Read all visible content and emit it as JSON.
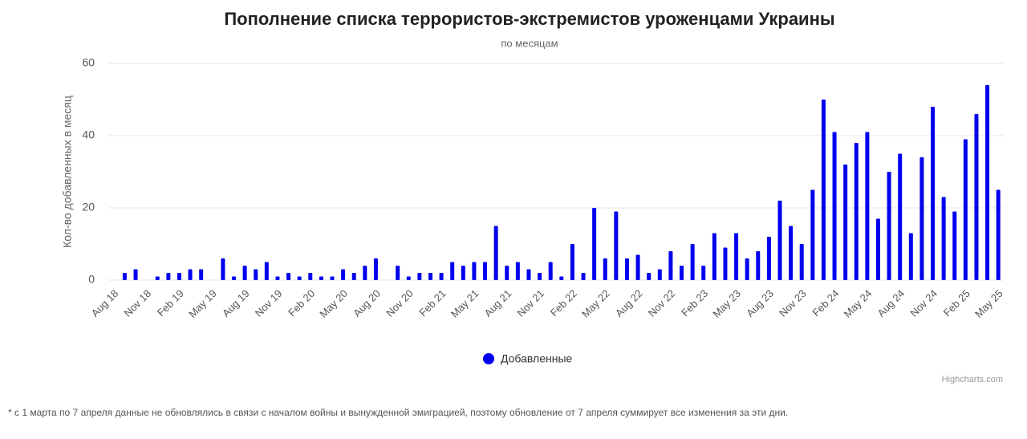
{
  "chart_data": {
    "type": "bar",
    "title": "Пополнение списка террористов-экстремистов уроженцами Украины",
    "subtitle": "по месяцам",
    "y_axis_label": "Кол-во добавленных в месяц",
    "credits": "Highcharts.com",
    "footnote": "* с 1 марта по 7 апреля данные не обновлялись в связи с началом войны и вынужденной эмиграцией, поэтому обновление от 7 апреля суммирует все изменения за эти дни.",
    "categories": [
      "Aug 18",
      null,
      null,
      "Nov 18",
      null,
      null,
      "Feb 19",
      null,
      null,
      "May 19",
      null,
      null,
      "Aug 19",
      null,
      null,
      "Nov 19",
      null,
      null,
      "Feb 20",
      null,
      null,
      "May 20",
      null,
      null,
      "Aug 20",
      null,
      null,
      "Nov 20",
      null,
      null,
      "Feb 21",
      null,
      null,
      "May 21",
      null,
      null,
      "Aug 21",
      null,
      null,
      "Nov 21",
      null,
      null,
      "Feb 22",
      null,
      null,
      "May 22",
      null,
      null,
      "Aug 22",
      null,
      null,
      "Nov 22",
      null,
      null,
      "Feb 23",
      null,
      null,
      "May 23",
      null,
      null,
      "Aug 23",
      null,
      null,
      "Nov 23",
      null,
      null,
      "Feb 24",
      null,
      null,
      "May 24",
      null,
      null,
      "Aug 24",
      null,
      null,
      "Nov 24",
      null,
      null,
      "Feb 25",
      null,
      null,
      "May 25"
    ],
    "series": [
      {
        "name": "Добавленные",
        "color": "#0000ee",
        "values": [
          0,
          2,
          3,
          0,
          1,
          2,
          2,
          3,
          3,
          0,
          6,
          1,
          4,
          3,
          5,
          1,
          2,
          1,
          2,
          1,
          1,
          3,
          2,
          4,
          6,
          0,
          4,
          1,
          2,
          2,
          2,
          5,
          4,
          5,
          5,
          15,
          4,
          5,
          3,
          2,
          5,
          1,
          10,
          2,
          20,
          6,
          19,
          6,
          7,
          2,
          3,
          8,
          4,
          10,
          4,
          13,
          9,
          13,
          6,
          8,
          12,
          22,
          15,
          10,
          25,
          50,
          41,
          32,
          38,
          41,
          17,
          30,
          35,
          13,
          34,
          48,
          23,
          19,
          39,
          46,
          54,
          25
        ]
      }
    ],
    "ylim": [
      0,
      60
    ],
    "yticks": [
      0,
      20,
      40,
      60
    ],
    "grid": true
  }
}
